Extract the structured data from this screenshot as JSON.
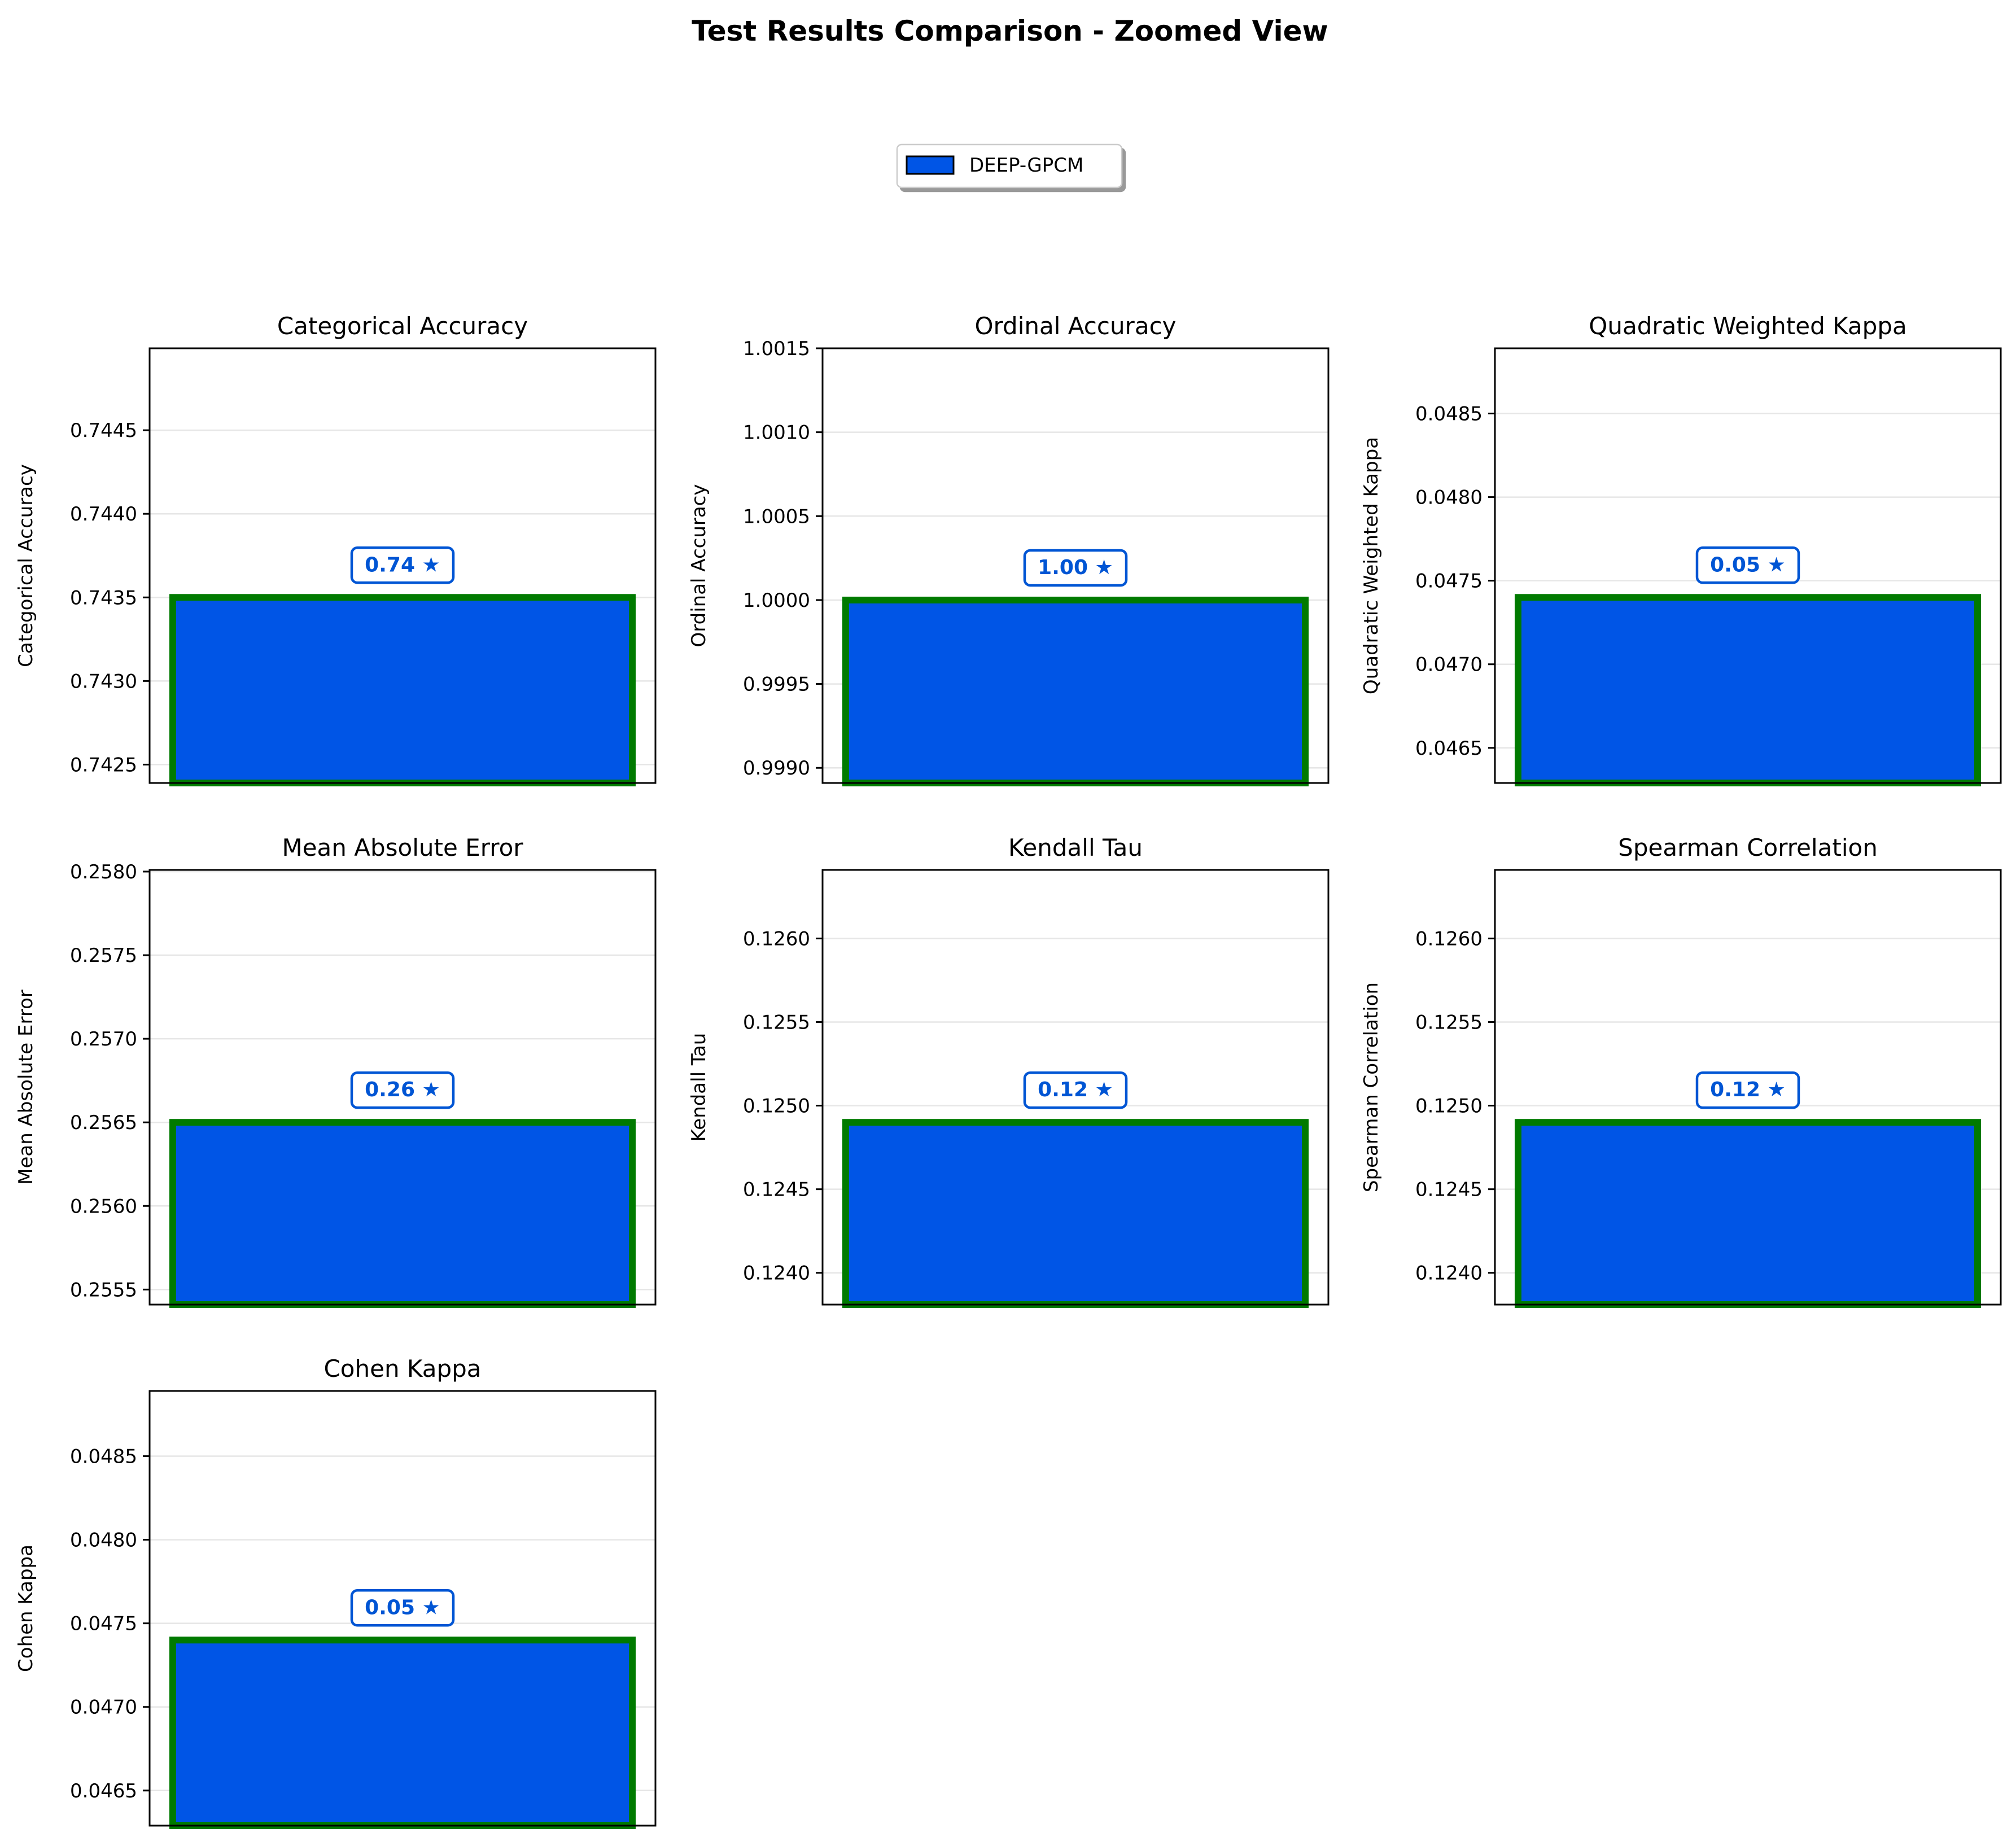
{
  "figure": {
    "title": "Test Results Comparison - Zoomed View",
    "legend": {
      "position": "top-center",
      "entries": [
        {
          "label": "DEEP-GPCM",
          "color": "#0055e6"
        }
      ]
    },
    "colors": {
      "bar_fill": "#0055e6",
      "bar_edge": "#007a00",
      "label_text": "#0055d4",
      "grid": "#e6e6e6"
    }
  },
  "chart_data": [
    {
      "type": "bar",
      "title": "Categorical Accuracy",
      "ylabel": "Categorical Accuracy",
      "categories": [
        "DEEP-GPCM"
      ],
      "values": [
        0.7435
      ],
      "value_label": "0.74 ★",
      "ylim": [
        0.74239,
        0.74499
      ],
      "yticks": [
        {
          "value": 0.7425,
          "label": "0.7425"
        },
        {
          "value": 0.743,
          "label": "0.7430"
        },
        {
          "value": 0.7435,
          "label": "0.7435"
        },
        {
          "value": 0.744,
          "label": "0.7440"
        },
        {
          "value": 0.7445,
          "label": "0.7445"
        }
      ],
      "grid": true
    },
    {
      "type": "bar",
      "title": "Ordinal Accuracy",
      "ylabel": "Ordinal Accuracy",
      "categories": [
        "DEEP-GPCM"
      ],
      "values": [
        1.0
      ],
      "value_label": "1.00 ★",
      "ylim": [
        0.99891,
        1.0015
      ],
      "yticks": [
        {
          "value": 0.999,
          "label": "0.9990"
        },
        {
          "value": 0.9995,
          "label": "0.9995"
        },
        {
          "value": 1.0,
          "label": "1.0000"
        },
        {
          "value": 1.0005,
          "label": "1.0005"
        },
        {
          "value": 1.001,
          "label": "1.0010"
        },
        {
          "value": 1.0015,
          "label": "1.0015"
        }
      ],
      "grid": true
    },
    {
      "type": "bar",
      "title": "Quadratic Weighted Kappa",
      "ylabel": "Quadratic Weighted Kappa",
      "categories": [
        "DEEP-GPCM"
      ],
      "values": [
        0.0474
      ],
      "value_label": "0.05 ★",
      "ylim": [
        0.04629,
        0.04889
      ],
      "yticks": [
        {
          "value": 0.0465,
          "label": "0.0465"
        },
        {
          "value": 0.047,
          "label": "0.0470"
        },
        {
          "value": 0.0475,
          "label": "0.0475"
        },
        {
          "value": 0.048,
          "label": "0.0480"
        },
        {
          "value": 0.0485,
          "label": "0.0485"
        }
      ],
      "grid": true
    },
    {
      "type": "bar",
      "title": "Mean Absolute Error",
      "ylabel": "Mean Absolute Error",
      "categories": [
        "DEEP-GPCM"
      ],
      "values": [
        0.2565
      ],
      "value_label": "0.26 ★",
      "ylim": [
        0.25541,
        0.25801
      ],
      "yticks": [
        {
          "value": 0.2555,
          "label": "0.2555"
        },
        {
          "value": 0.256,
          "label": "0.2560"
        },
        {
          "value": 0.2565,
          "label": "0.2565"
        },
        {
          "value": 0.257,
          "label": "0.2570"
        },
        {
          "value": 0.2575,
          "label": "0.2575"
        },
        {
          "value": 0.258,
          "label": "0.2580"
        }
      ],
      "grid": true
    },
    {
      "type": "bar",
      "title": "Kendall Tau",
      "ylabel": "Kendall Tau",
      "categories": [
        "DEEP-GPCM"
      ],
      "values": [
        0.1249
      ],
      "value_label": "0.12 ★",
      "ylim": [
        0.12381,
        0.12641
      ],
      "yticks": [
        {
          "value": 0.124,
          "label": "0.1240"
        },
        {
          "value": 0.1245,
          "label": "0.1245"
        },
        {
          "value": 0.125,
          "label": "0.1250"
        },
        {
          "value": 0.1255,
          "label": "0.1255"
        },
        {
          "value": 0.126,
          "label": "0.1260"
        }
      ],
      "grid": true
    },
    {
      "type": "bar",
      "title": "Spearman Correlation",
      "ylabel": "Spearman Correlation",
      "categories": [
        "DEEP-GPCM"
      ],
      "values": [
        0.1249
      ],
      "value_label": "0.12 ★",
      "ylim": [
        0.12381,
        0.12641
      ],
      "yticks": [
        {
          "value": 0.124,
          "label": "0.1240"
        },
        {
          "value": 0.1245,
          "label": "0.1245"
        },
        {
          "value": 0.125,
          "label": "0.1250"
        },
        {
          "value": 0.1255,
          "label": "0.1255"
        },
        {
          "value": 0.126,
          "label": "0.1260"
        }
      ],
      "grid": true
    },
    {
      "type": "bar",
      "title": "Cohen Kappa",
      "ylabel": "Cohen Kappa",
      "categories": [
        "DEEP-GPCM"
      ],
      "values": [
        0.0474
      ],
      "value_label": "0.05 ★",
      "ylim": [
        0.04629,
        0.04889
      ],
      "yticks": [
        {
          "value": 0.0465,
          "label": "0.0465"
        },
        {
          "value": 0.047,
          "label": "0.0470"
        },
        {
          "value": 0.0475,
          "label": "0.0475"
        },
        {
          "value": 0.048,
          "label": "0.0480"
        },
        {
          "value": 0.0485,
          "label": "0.0485"
        }
      ],
      "grid": true
    }
  ]
}
